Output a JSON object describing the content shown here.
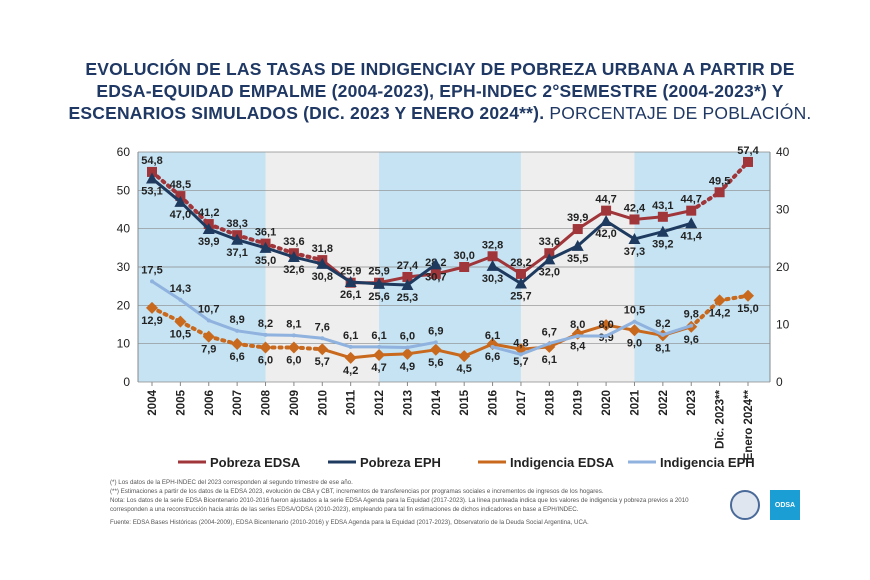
{
  "title": {
    "bold": "EVOLUCIÓN DE LAS TASAS DE INDIGENCIAY DE POBREZA URBANA A PARTIR DE EDSA-EQUIDAD EMPALME (2004-2023), EPH-INDEC 2°SEMESTRE (2004-2023*) Y ESCENARIOS SIMULADOS (DIC. 2023 Y ENERO 2024**).",
    "light": " PORCENTAJE DE POBLACIÓN."
  },
  "chart_data": {
    "type": "line",
    "categories": [
      "2004",
      "2005",
      "2006",
      "2007",
      "2008",
      "2009",
      "2010",
      "2011",
      "2012",
      "2013",
      "2014",
      "2015",
      "2016",
      "2017",
      "2018",
      "2019",
      "2020",
      "2021",
      "2022",
      "2023",
      "Dic. 2023**",
      "Enero 2024**"
    ],
    "ylim_left": [
      0,
      60
    ],
    "yticks_left": [
      0,
      10,
      20,
      30,
      40,
      50,
      60
    ],
    "ylim_right": [
      0,
      40
    ],
    "yticks_right": [
      0,
      10,
      20,
      30,
      40
    ],
    "grid": true,
    "legend_position": "bottom",
    "series": [
      {
        "name": "Pobreza EDSA",
        "axis": "left",
        "color": "#a0353a",
        "marker": "square",
        "dotted_until_index": 6,
        "dotted_from_index": 19,
        "values": [
          54.8,
          48.5,
          41.2,
          38.3,
          36.1,
          33.6,
          31.8,
          25.9,
          25.9,
          27.4,
          28.2,
          30.0,
          32.8,
          28.2,
          33.6,
          39.9,
          44.7,
          42.4,
          43.1,
          44.7,
          49.5,
          57.4
        ]
      },
      {
        "name": "Pobreza EPH",
        "axis": "left",
        "color": "#1f3a5f",
        "marker": "triangle",
        "values": [
          53.1,
          47.0,
          39.9,
          37.1,
          35.0,
          32.6,
          30.8,
          26.1,
          25.6,
          25.3,
          30.7,
          null,
          30.3,
          25.7,
          32.0,
          35.5,
          42.0,
          37.3,
          39.2,
          41.4,
          null,
          null
        ]
      },
      {
        "name": "Indigencia EDSA",
        "axis": "right",
        "color": "#c8691e",
        "marker": "diamond",
        "dotted_until_index": 6,
        "dotted_from_index": 19,
        "values": [
          12.9,
          10.5,
          7.9,
          6.6,
          6.0,
          6.0,
          5.7,
          4.2,
          4.7,
          4.9,
          5.6,
          4.5,
          6.6,
          5.7,
          6.1,
          8.4,
          9.9,
          9.0,
          8.1,
          9.6,
          14.2,
          15.0
        ]
      },
      {
        "name": "Indigencia EPH",
        "axis": "right",
        "color": "#8fb2df",
        "marker": "none",
        "values": [
          17.5,
          14.3,
          10.7,
          8.9,
          8.2,
          8.1,
          7.6,
          6.1,
          6.1,
          6.0,
          6.9,
          null,
          6.1,
          4.8,
          6.7,
          8.0,
          8.0,
          10.5,
          8.2,
          9.8,
          null,
          null
        ]
      }
    ],
    "background_bands": [
      {
        "from": "2004",
        "to": "2008",
        "color": "#c5e3f3"
      },
      {
        "from": "2008",
        "to": "2012",
        "color": "#eeeeee"
      },
      {
        "from": "2012",
        "to": "2017",
        "color": "#c5e3f3"
      },
      {
        "from": "2017",
        "to": "2021",
        "color": "#eeeeee"
      },
      {
        "from": "2021",
        "to": "Enero 2024**",
        "color": "#c5e3f3"
      }
    ]
  },
  "notes": [
    "(*) Los datos de la EPH-INDEC del 2023 corresponden al segundo trimestre de ese año.",
    "(**) Estimaciones a partir de los datos de la EDSA 2023, evolución de CBA y CBT, incrementos de transferencias por programas sociales e incrementos de ingresos de los hogares.",
    "Nota: Los datos de la serie EDSA Bicentenario 2010-2016 fueron ajustados a la serie EDSA Agenda para la Equidad (2017-2023). La línea punteada indica que los valores de indigencia y pobreza previos a 2010 corresponden a una reconstrucción hacia atrás de las series EDSA/ODSA (2010-2023), empleando para tal fin estimaciones de dichos indicadores en base a EPH/INDEC.",
    "Fuente: EDSA Bases Históricas (2004-2009), EDSA Bicentenario (2010-2016) y EDSA Agenda para la Equidad (2017-2023), Observatorio de la Deuda Social Argentina, UCA."
  ],
  "logos": {
    "odsa": "ODSA"
  }
}
